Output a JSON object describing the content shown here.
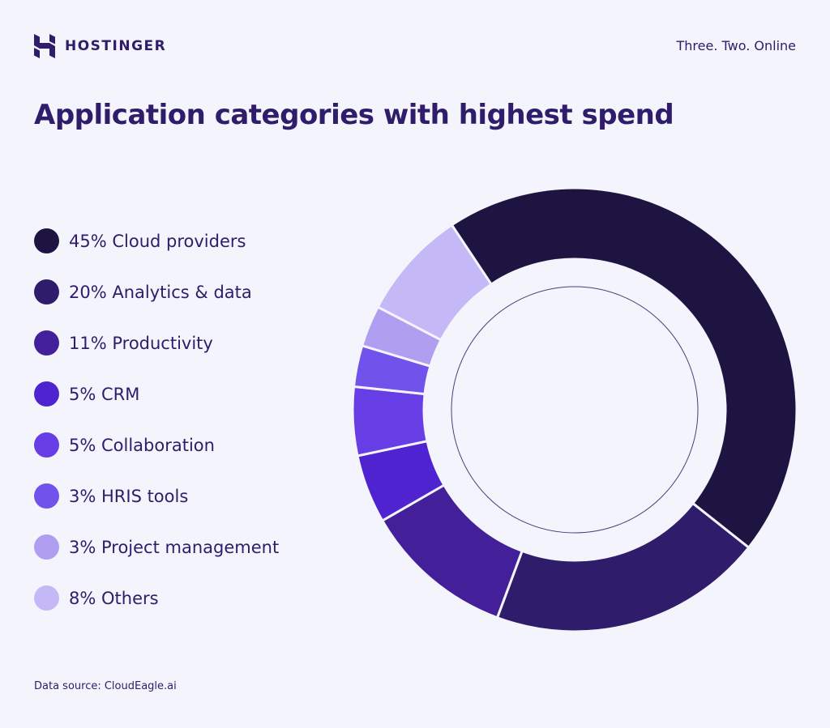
{
  "brand": {
    "name": "HOSTINGER",
    "tagline": "Three. Two. Online"
  },
  "source": "Data source: CloudEagle.ai",
  "chart_data": {
    "type": "pie",
    "variant": "donut",
    "title": "Application categories with highest spend",
    "legend_position": "left",
    "categories": [
      "Cloud providers",
      "Analytics & data",
      "Productivity",
      "CRM",
      "Collaboration",
      "HRIS tools",
      "Project management",
      "Others"
    ],
    "values": [
      45,
      20,
      11,
      5,
      5,
      3,
      3,
      8
    ],
    "unit": "%",
    "labels": [
      "45% Cloud providers",
      "20% Analytics & data",
      "11% Productivity",
      "5% CRM",
      "5% Collaboration",
      "3% HRIS tools",
      "3% Project management",
      "8% Others"
    ],
    "colors": [
      "#1d1442",
      "#2f1c6a",
      "#43209a",
      "#4f23cf",
      "#673de6",
      "#7152ea",
      "#b09ef0",
      "#c4b9f6"
    ]
  }
}
